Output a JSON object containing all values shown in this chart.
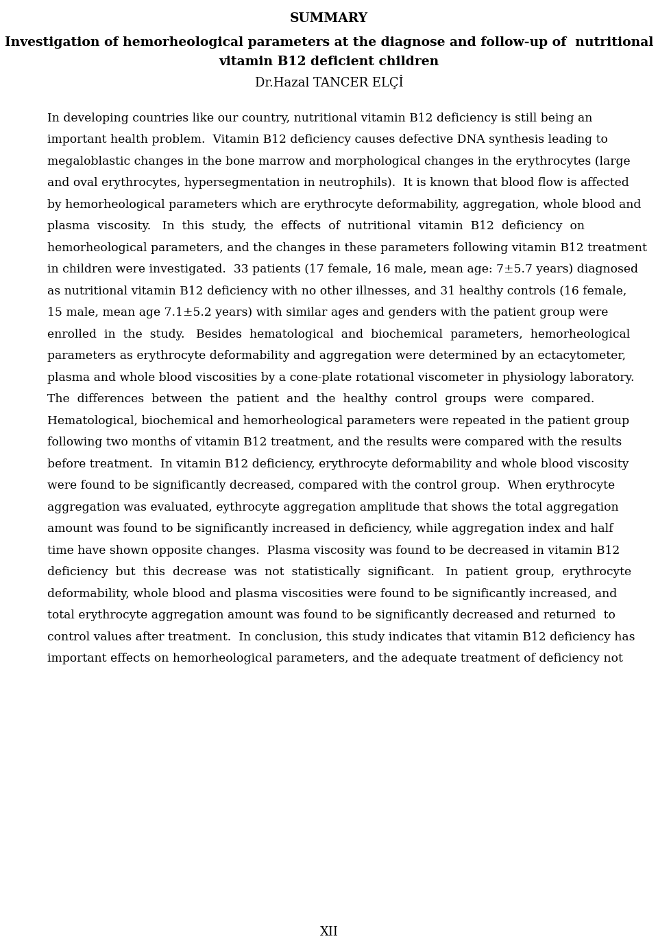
{
  "background_color": "#ffffff",
  "title": "SUMMARY",
  "subtitle_line1": "Investigation of hemorheological parameters at the diagnose and follow-up of  nutritional",
  "subtitle_line2": "vitamin B12 deficient children",
  "author": "Dr.Hazal TANCER ELÇİ",
  "body_text": [
    "In developing countries like our country, nutritional vitamin B12 deficiency is still being an",
    "important health problem.  Vitamin B12 deficiency causes defective DNA synthesis leading to",
    "megaloblastic changes in the bone marrow and morphological changes in the erythrocytes (large",
    "and oval erythrocytes, hypersegmentation in neutrophils).  It is known that blood flow is affected",
    "by hemorheological parameters which are erythrocyte deformability, aggregation, whole blood and",
    "plasma  viscosity.   In  this  study,  the  effects  of  nutritional  vitamin  B12  deficiency  on",
    "hemorheological parameters, and the changes in these parameters following vitamin B12 treatment",
    "in children were investigated.  33 patients (17 female, 16 male, mean age: 7±5.7 years) diagnosed",
    "as nutritional vitamin B12 deficiency with no other illnesses, and 31 healthy controls (16 female,",
    "15 male, mean age 7.1±5.2 years) with similar ages and genders with the patient group were",
    "enrolled  in  the  study.   Besides  hematological  and  biochemical  parameters,  hemorheological",
    "parameters as erythrocyte deformability and aggregation were determined by an ectacytometer,",
    "plasma and whole blood viscosities by a cone-plate rotational viscometer in physiology laboratory.",
    "The  differences  between  the  patient  and  the  healthy  control  groups  were  compared.",
    "Hematological, biochemical and hemorheological parameters were repeated in the patient group",
    "following two months of vitamin B12 treatment, and the results were compared with the results",
    "before treatment.  In vitamin B12 deficiency, erythrocyte deformability and whole blood viscosity",
    "were found to be significantly decreased, compared with the control group.  When erythrocyte",
    "aggregation was evaluated, eythrocyte aggregation amplitude that shows the total aggregation",
    "amount was found to be significantly increased in deficiency, while aggregation index and half",
    "time have shown opposite changes.  Plasma viscosity was found to be decreased in vitamin B12",
    "deficiency  but  this  decrease  was  not  statistically  significant.   In  patient  group,  erythrocyte",
    "deformability, whole blood and plasma viscosities were found to be significantly increased, and",
    "total erythrocyte aggregation amount was found to be significantly decreased and returned  to",
    "control values after treatment.  In conclusion, this study indicates that vitamin B12 deficiency has",
    "important effects on hemorheological parameters, and the adequate treatment of deficiency not"
  ],
  "page_number": "XII",
  "fig_width": 9.6,
  "fig_height": 13.71,
  "dpi": 100
}
